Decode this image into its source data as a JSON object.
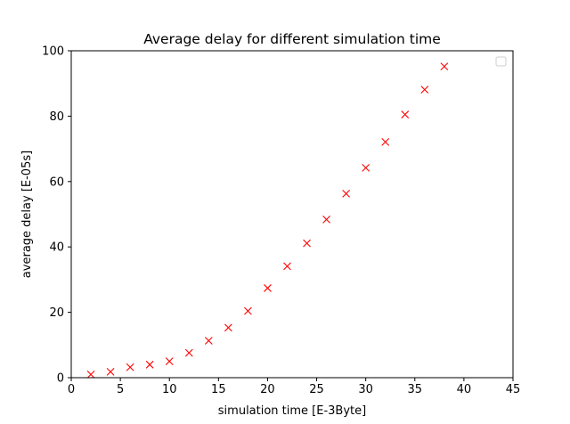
{
  "chart_data": {
    "type": "scatter",
    "title": "Average delay for different simulation time",
    "xlabel": "simulation time [E-3Byte]",
    "ylabel": "average delay [E-05s]",
    "xlim": [
      0,
      45
    ],
    "ylim": [
      0,
      100
    ],
    "xticks": [
      "0",
      "5",
      "10",
      "15",
      "20",
      "25",
      "30",
      "35",
      "40",
      "45"
    ],
    "yticks": [
      "0",
      "20",
      "40",
      "60",
      "80",
      "100"
    ],
    "grid": false,
    "legend": {
      "placement": "top-right",
      "entries": []
    },
    "marker": "x",
    "marker_color": "#ff0000",
    "series": [
      {
        "x": [
          2,
          4,
          6,
          8,
          10,
          12,
          14,
          16,
          18,
          20,
          22,
          24,
          26,
          28,
          30,
          32,
          34,
          36,
          38
        ],
        "y": [
          1.0,
          1.8,
          3.2,
          4.0,
          5.0,
          7.6,
          11.3,
          15.3,
          20.4,
          27.4,
          34.1,
          41.1,
          48.4,
          56.3,
          64.2,
          72.1,
          80.5,
          88.1,
          95.2
        ]
      }
    ]
  }
}
